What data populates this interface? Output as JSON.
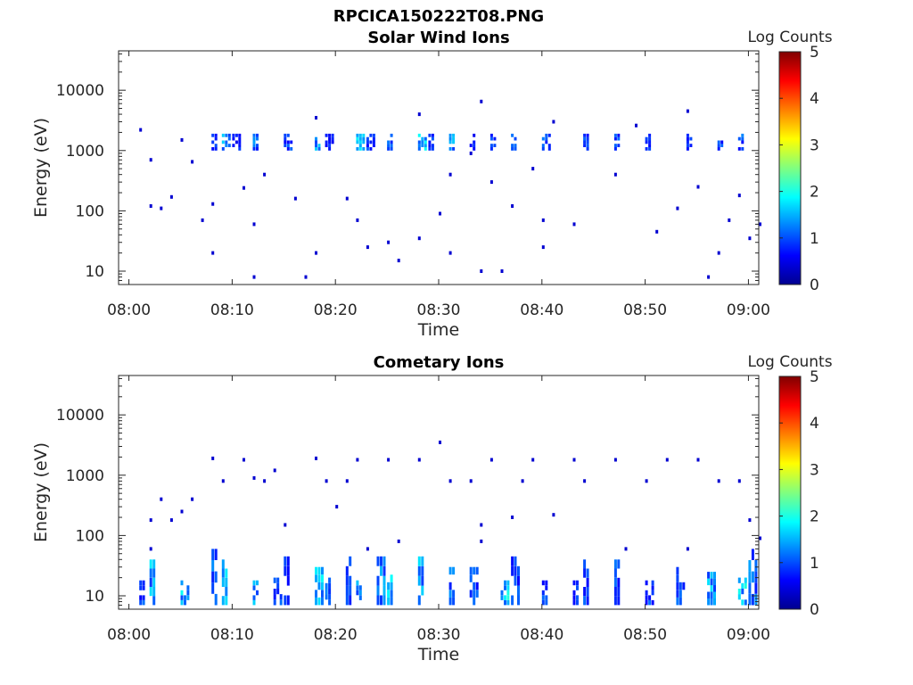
{
  "figure_title": "RPCICA150222T08.PNG",
  "chart_data": [
    {
      "type": "heatmap",
      "title": "Solar Wind Ions",
      "xlabel": "Time",
      "ylabel": "Energy (eV)",
      "y_scale": "log",
      "xlim": [
        "07:59",
        "09:01"
      ],
      "ylim": [
        6,
        45000
      ],
      "x_ticks": [
        "08:00",
        "08:10",
        "08:20",
        "08:30",
        "08:40",
        "08:50",
        "09:00"
      ],
      "y_ticks": [
        10,
        100,
        1000,
        10000
      ],
      "y_tick_labels": [
        "10",
        "100",
        "1000",
        "10000"
      ],
      "colorbar": {
        "label": "Log Counts",
        "min": 0,
        "max": 5,
        "ticks": [
          "0",
          "1",
          "2",
          "3",
          "4",
          "5"
        ]
      },
      "bursts": [
        [
          "08:08",
          1000,
          1900,
          1.0
        ],
        [
          "08:09",
          1000,
          1900,
          1.4
        ],
        [
          "08:10",
          1000,
          1900,
          0.8
        ],
        [
          "08:12",
          1000,
          1900,
          1.2
        ],
        [
          "08:15",
          1000,
          1900,
          1.0
        ],
        [
          "08:18",
          1000,
          1900,
          1.5
        ],
        [
          "08:19",
          1000,
          1900,
          0.9
        ],
        [
          "08:22",
          1000,
          1900,
          1.6
        ],
        [
          "08:23",
          1000,
          1900,
          1.0
        ],
        [
          "08:25",
          1000,
          1900,
          1.3
        ],
        [
          "08:28",
          1000,
          1900,
          1.7
        ],
        [
          "08:29",
          1000,
          1900,
          0.9
        ],
        [
          "08:31",
          1000,
          1900,
          1.4
        ],
        [
          "08:33",
          1000,
          1900,
          0.8
        ],
        [
          "08:35",
          1000,
          1900,
          1.1
        ],
        [
          "08:37",
          1000,
          1900,
          1.0
        ],
        [
          "08:40",
          1000,
          1900,
          1.2
        ],
        [
          "08:44",
          1000,
          1900,
          1.0
        ],
        [
          "08:47",
          1000,
          1900,
          1.1
        ],
        [
          "08:50",
          1000,
          1900,
          0.9
        ],
        [
          "08:54",
          1000,
          1900,
          1.0
        ],
        [
          "08:57",
          1000,
          1900,
          1.0
        ],
        [
          "08:59",
          1000,
          1900,
          1.1
        ]
      ],
      "scatter": [
        [
          "08:01",
          2200
        ],
        [
          "08:02",
          700
        ],
        [
          "08:02",
          120
        ],
        [
          "08:03",
          110
        ],
        [
          "08:04",
          170
        ],
        [
          "08:05",
          1500
        ],
        [
          "08:06",
          650
        ],
        [
          "08:07",
          70
        ],
        [
          "08:08",
          130
        ],
        [
          "08:08",
          20
        ],
        [
          "08:11",
          240
        ],
        [
          "08:12",
          60
        ],
        [
          "08:12",
          8
        ],
        [
          "08:13",
          400
        ],
        [
          "08:16",
          160
        ],
        [
          "08:17",
          8
        ],
        [
          "08:18",
          20
        ],
        [
          "08:18",
          3500
        ],
        [
          "08:21",
          160
        ],
        [
          "08:22",
          70
        ],
        [
          "08:23",
          25
        ],
        [
          "08:25",
          30
        ],
        [
          "08:26",
          15
        ],
        [
          "08:28",
          35
        ],
        [
          "08:28",
          4000
        ],
        [
          "08:30",
          90
        ],
        [
          "08:31",
          20
        ],
        [
          "08:31",
          400
        ],
        [
          "08:33",
          900
        ],
        [
          "08:34",
          6500
        ],
        [
          "08:34",
          10
        ],
        [
          "08:35",
          300
        ],
        [
          "08:36",
          10
        ],
        [
          "08:37",
          120
        ],
        [
          "08:39",
          500
        ],
        [
          "08:40",
          70
        ],
        [
          "08:40",
          25
        ],
        [
          "08:41",
          3000
        ],
        [
          "08:43",
          60
        ],
        [
          "08:47",
          400
        ],
        [
          "08:49",
          2600
        ],
        [
          "08:51",
          45
        ],
        [
          "08:53",
          110
        ],
        [
          "08:54",
          4500
        ],
        [
          "08:55",
          250
        ],
        [
          "08:56",
          8
        ],
        [
          "08:57",
          20
        ],
        [
          "08:58",
          70
        ],
        [
          "08:59",
          180
        ],
        [
          "09:00",
          35
        ],
        [
          "09:01",
          60
        ]
      ]
    },
    {
      "type": "heatmap",
      "title": "Cometary Ions",
      "xlabel": "Time",
      "ylabel": "Energy (eV)",
      "y_scale": "log",
      "xlim": [
        "07:59",
        "09:01"
      ],
      "ylim": [
        6,
        45000
      ],
      "x_ticks": [
        "08:00",
        "08:10",
        "08:20",
        "08:30",
        "08:40",
        "08:50",
        "09:00"
      ],
      "y_ticks": [
        10,
        100,
        1000,
        10000
      ],
      "y_tick_labels": [
        "10",
        "100",
        "1000",
        "10000"
      ],
      "colorbar": {
        "label": "Log Counts",
        "min": 0,
        "max": 5,
        "ticks": [
          "0",
          "1",
          "2",
          "3",
          "4",
          "5"
        ]
      },
      "bursts": [
        [
          "08:01",
          7,
          18,
          1.0
        ],
        [
          "08:02",
          7,
          40,
          1.5
        ],
        [
          "08:05",
          7,
          18,
          1.6
        ],
        [
          "08:08",
          7,
          60,
          1.2
        ],
        [
          "08:09",
          7,
          40,
          1.5
        ],
        [
          "08:12",
          7,
          18,
          1.4
        ],
        [
          "08:14",
          7,
          20,
          1.1
        ],
        [
          "08:15",
          7,
          45,
          1.0
        ],
        [
          "08:18",
          7,
          30,
          1.7
        ],
        [
          "08:19",
          7,
          20,
          1.2
        ],
        [
          "08:21",
          7,
          45,
          0.9
        ],
        [
          "08:22",
          7,
          18,
          1.5
        ],
        [
          "08:24",
          7,
          45,
          1.3
        ],
        [
          "08:25",
          7,
          30,
          1.6
        ],
        [
          "08:28",
          7,
          45,
          1.5
        ],
        [
          "08:31",
          7,
          30,
          1.2
        ],
        [
          "08:33",
          7,
          30,
          1.0
        ],
        [
          "08:36",
          7,
          18,
          1.8
        ],
        [
          "08:37",
          7,
          45,
          1.0
        ],
        [
          "08:40",
          7,
          18,
          1.0
        ],
        [
          "08:43",
          7,
          18,
          0.9
        ],
        [
          "08:44",
          7,
          40,
          1.0
        ],
        [
          "08:47",
          7,
          40,
          1.1
        ],
        [
          "08:50",
          7,
          18,
          1.0
        ],
        [
          "08:53",
          7,
          30,
          1.1
        ],
        [
          "08:56",
          7,
          25,
          1.5
        ],
        [
          "08:59",
          7,
          20,
          1.7
        ],
        [
          "09:00",
          7,
          60,
          1.2
        ]
      ],
      "scatter": [
        [
          "08:02",
          180
        ],
        [
          "08:02",
          60
        ],
        [
          "08:03",
          400
        ],
        [
          "08:04",
          180
        ],
        [
          "08:05",
          250
        ],
        [
          "08:06",
          400
        ],
        [
          "08:08",
          1900
        ],
        [
          "08:09",
          800
        ],
        [
          "08:11",
          1800
        ],
        [
          "08:12",
          900
        ],
        [
          "08:13",
          800
        ],
        [
          "08:14",
          1200
        ],
        [
          "08:15",
          150
        ],
        [
          "08:18",
          1900
        ],
        [
          "08:19",
          800
        ],
        [
          "08:20",
          300
        ],
        [
          "08:21",
          800
        ],
        [
          "08:22",
          1800
        ],
        [
          "08:23",
          60
        ],
        [
          "08:25",
          1800
        ],
        [
          "08:26",
          80
        ],
        [
          "08:28",
          1800
        ],
        [
          "08:30",
          3500
        ],
        [
          "08:31",
          800
        ],
        [
          "08:33",
          800
        ],
        [
          "08:34",
          150
        ],
        [
          "08:34",
          80
        ],
        [
          "08:35",
          1800
        ],
        [
          "08:37",
          200
        ],
        [
          "08:38",
          800
        ],
        [
          "08:39",
          1800
        ],
        [
          "08:41",
          220
        ],
        [
          "08:43",
          1800
        ],
        [
          "08:44",
          800
        ],
        [
          "08:47",
          1800
        ],
        [
          "08:48",
          60
        ],
        [
          "08:50",
          800
        ],
        [
          "08:52",
          1800
        ],
        [
          "08:54",
          60
        ],
        [
          "08:55",
          1800
        ],
        [
          "08:57",
          800
        ],
        [
          "08:59",
          800
        ],
        [
          "09:00",
          180
        ],
        [
          "09:01",
          90
        ]
      ]
    }
  ]
}
